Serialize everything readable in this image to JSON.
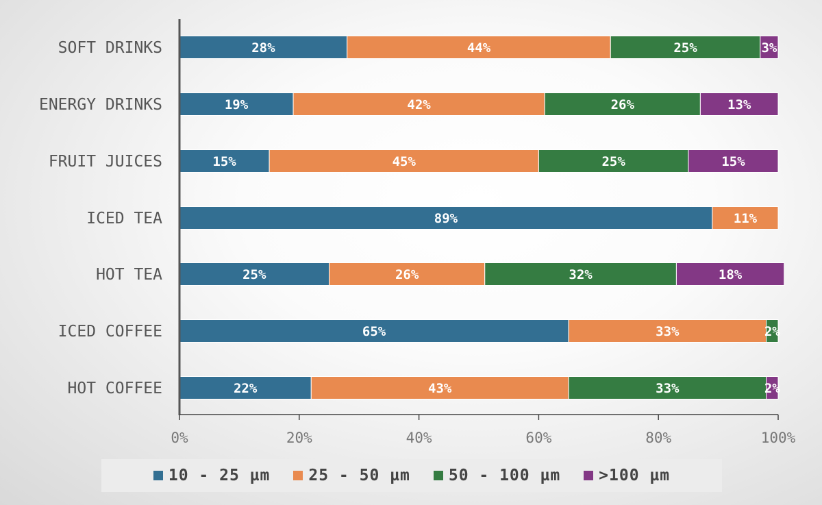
{
  "chart_data": {
    "type": "bar",
    "orientation": "horizontal",
    "stacked": true,
    "categories": [
      "SOFT DRINKS",
      "ENERGY DRINKS",
      "FRUIT JUICES",
      "ICED TEA",
      "HOT TEA",
      "ICED COFFEE",
      "HOT COFFEE"
    ],
    "series": [
      {
        "name": "10 - 25 µm",
        "color": "#336f92",
        "values": [
          28,
          19,
          15,
          89,
          25,
          65,
          22
        ]
      },
      {
        "name": "25 - 50 µm",
        "color": "#e98a4f",
        "values": [
          44,
          42,
          45,
          11,
          26,
          33,
          43
        ]
      },
      {
        "name": "50 - 100 µm",
        "color": "#357c42",
        "values": [
          25,
          26,
          25,
          0,
          32,
          2,
          33
        ]
      },
      {
        "name": ">100 µm",
        "color": "#833885",
        "values": [
          3,
          13,
          15,
          0,
          18,
          0,
          2
        ]
      }
    ],
    "xlim": [
      0,
      100
    ],
    "xticks": [
      "0%",
      "20%",
      "40%",
      "60%",
      "80%",
      "100%"
    ],
    "value_suffix": "%",
    "legend_position": "bottom",
    "grid": false
  }
}
